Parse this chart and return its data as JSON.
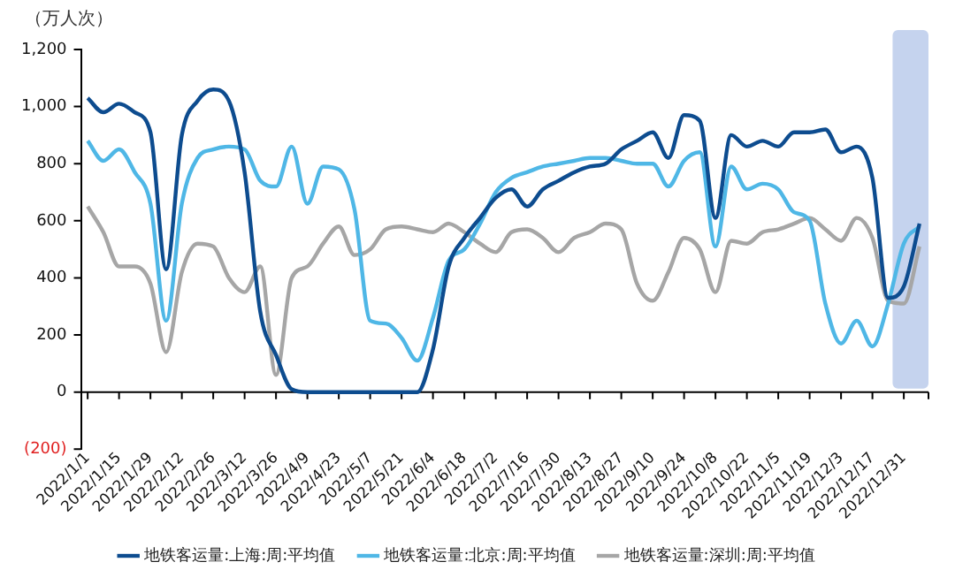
{
  "chart_data": {
    "type": "line",
    "ylabel": "（万人次）",
    "x": [
      "2022-01-01",
      "2022-01-08",
      "2022-01-15",
      "2022-01-22",
      "2022-01-29",
      "2022-02-05",
      "2022-02-12",
      "2022-02-19",
      "2022-02-26",
      "2022-03-05",
      "2022-03-12",
      "2022-03-19",
      "2022-03-26",
      "2022-04-02",
      "2022-04-09",
      "2022-04-16",
      "2022-04-23",
      "2022-04-30",
      "2022-05-07",
      "2022-05-14",
      "2022-05-21",
      "2022-05-28",
      "2022-06-04",
      "2022-06-11",
      "2022-06-18",
      "2022-06-25",
      "2022-07-02",
      "2022-07-09",
      "2022-07-16",
      "2022-07-23",
      "2022-07-30",
      "2022-08-06",
      "2022-08-13",
      "2022-08-20",
      "2022-08-27",
      "2022-09-03",
      "2022-09-10",
      "2022-09-17",
      "2022-09-24",
      "2022-10-01",
      "2022-10-08",
      "2022-10-15",
      "2022-10-22",
      "2022-10-29",
      "2022-11-05",
      "2022-11-12",
      "2022-11-19",
      "2022-11-26",
      "2022-12-03",
      "2022-12-10",
      "2022-12-17",
      "2022-12-24",
      "2022-12-31",
      "2023-01-07"
    ],
    "series": [
      {
        "name": "地铁客运量:上海:周:平均值",
        "color": "#0d4c8f",
        "values": [
          1030,
          980,
          1010,
          980,
          910,
          430,
          900,
          1020,
          1060,
          1020,
          770,
          280,
          130,
          10,
          0,
          0,
          0,
          0,
          0,
          0,
          0,
          0,
          150,
          440,
          540,
          610,
          680,
          710,
          650,
          710,
          740,
          770,
          790,
          800,
          850,
          880,
          910,
          820,
          970,
          950,
          610,
          900,
          860,
          880,
          860,
          910,
          910,
          920,
          840,
          860,
          750,
          330,
          370,
          590
        ]
      },
      {
        "name": "地铁客运量:北京:周:平均值",
        "color": "#4fb7e6",
        "values": [
          880,
          810,
          850,
          770,
          660,
          250,
          660,
          820,
          850,
          860,
          850,
          740,
          720,
          860,
          660,
          790,
          780,
          640,
          250,
          240,
          190,
          110,
          260,
          460,
          500,
          590,
          700,
          750,
          770,
          790,
          800,
          810,
          820,
          820,
          810,
          800,
          800,
          720,
          810,
          840,
          510,
          790,
          710,
          730,
          710,
          630,
          600,
          310,
          170,
          250,
          160,
          310,
          520,
          580
        ]
      },
      {
        "name": "地铁客运量:深圳:周:平均值",
        "color": "#a6a6a6",
        "values": [
          650,
          560,
          440,
          440,
          380,
          140,
          420,
          520,
          510,
          400,
          350,
          440,
          60,
          400,
          440,
          520,
          580,
          480,
          500,
          570,
          580,
          570,
          560,
          590,
          560,
          520,
          490,
          560,
          570,
          540,
          490,
          540,
          560,
          590,
          570,
          380,
          320,
          420,
          540,
          500,
          350,
          530,
          520,
          560,
          570,
          590,
          610,
          570,
          530,
          610,
          540,
          320,
          310,
          510
        ]
      }
    ],
    "xlim": [
      "2021-12-29",
      "2023-01-11"
    ],
    "xticks": [
      {
        "value": "2022-01-01",
        "label": "2022/1/1"
      },
      {
        "value": "2022-01-15",
        "label": "2022/1/15"
      },
      {
        "value": "2022-01-29",
        "label": "2022/1/29"
      },
      {
        "value": "2022-02-12",
        "label": "2022/2/12"
      },
      {
        "value": "2022-02-26",
        "label": "2022/2/26"
      },
      {
        "value": "2022-03-12",
        "label": "2022/3/12"
      },
      {
        "value": "2022-03-26",
        "label": "2022/3/26"
      },
      {
        "value": "2022-04-09",
        "label": "2022/4/9"
      },
      {
        "value": "2022-04-23",
        "label": "2022/4/23"
      },
      {
        "value": "2022-05-07",
        "label": "2022/5/7"
      },
      {
        "value": "2022-05-21",
        "label": "2022/5/21"
      },
      {
        "value": "2022-06-04",
        "label": "2022/6/4"
      },
      {
        "value": "2022-06-18",
        "label": "2022/6/18"
      },
      {
        "value": "2022-07-02",
        "label": "2022/7/2"
      },
      {
        "value": "2022-07-16",
        "label": "2022/7/16"
      },
      {
        "value": "2022-07-30",
        "label": "2022/7/30"
      },
      {
        "value": "2022-08-13",
        "label": "2022/8/13"
      },
      {
        "value": "2022-08-27",
        "label": "2022/8/27"
      },
      {
        "value": "2022-09-10",
        "label": "2022/9/10"
      },
      {
        "value": "2022-09-24",
        "label": "2022/9/24"
      },
      {
        "value": "2022-10-08",
        "label": "2022/10/8"
      },
      {
        "value": "2022-10-22",
        "label": "2022/10/22"
      },
      {
        "value": "2022-11-05",
        "label": "2022/11/5"
      },
      {
        "value": "2022-11-19",
        "label": "2022/11/19"
      },
      {
        "value": "2022-12-03",
        "label": "2022/12/3"
      },
      {
        "value": "2022-12-17",
        "label": "2022/12/17"
      },
      {
        "value": "2022-12-31",
        "label": "2022/12/31"
      }
    ],
    "ylim": [
      -200,
      1200
    ],
    "yticks": [
      {
        "value": -200,
        "label": "(200)"
      },
      {
        "value": 0,
        "label": "0"
      },
      {
        "value": 200,
        "label": "200"
      },
      {
        "value": 400,
        "label": "400"
      },
      {
        "value": 600,
        "label": "600"
      },
      {
        "value": 800,
        "label": "800"
      },
      {
        "value": 1000,
        "label": "1,000"
      },
      {
        "value": 1200,
        "label": "1,200"
      }
    ],
    "bands": [
      {
        "axis": "x",
        "from": "2022-12-26",
        "to": "2023-01-11",
        "color": "#c5d3ee"
      }
    ],
    "ref_lines": [
      {
        "axis": "y",
        "value": 0,
        "color": "#000000"
      }
    ],
    "grid": false,
    "legend": "bottom",
    "marker": "none",
    "line_style": "solid"
  }
}
